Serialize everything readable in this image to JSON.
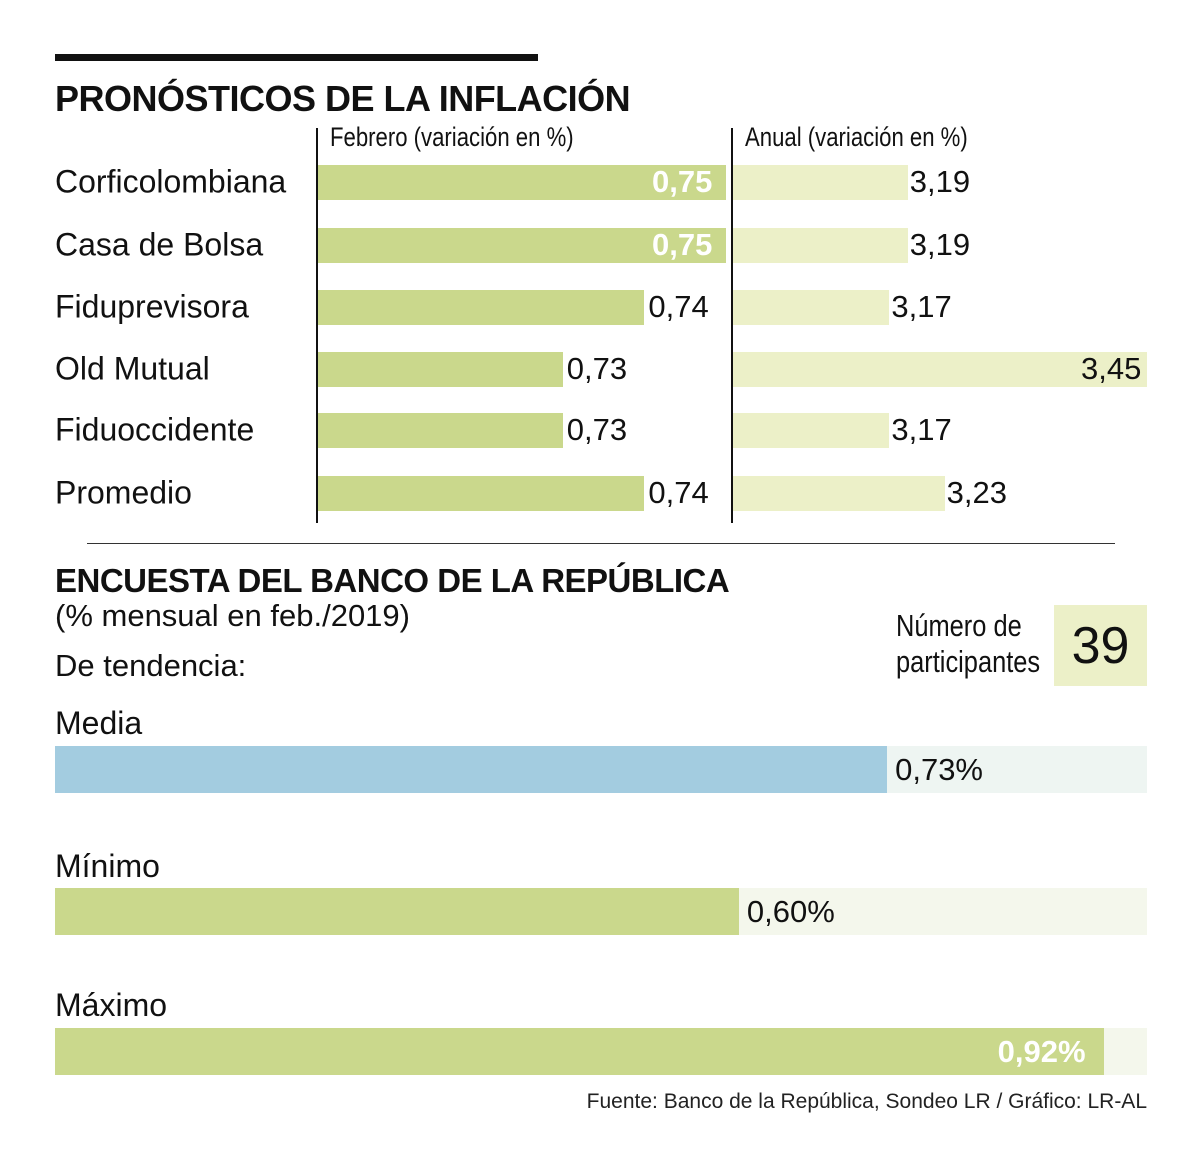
{
  "colors": {
    "feb": "#cad88c",
    "annual": "#ecf0c8",
    "media": "#a3cce0",
    "media_track": "#eef5f2",
    "green_track": "#f4f7ec"
  },
  "title": "PRONÓSTICOS DE LA INFLACIÓN",
  "chart_data": [
    {
      "type": "bar",
      "title": "PRONÓSTICOS DE LA INFLACIÓN",
      "subtitle": "Febrero (variación en %)",
      "orientation": "horizontal",
      "categories": [
        "Corficolombiana",
        "Casa de Bolsa",
        "Fiduprevisora",
        "Old Mutual",
        "Fiduoccidente",
        "Promedio"
      ],
      "values": [
        0.75,
        0.75,
        0.74,
        0.73,
        0.73,
        0.74
      ],
      "labels": [
        "0,75",
        "0,75",
        "0,74",
        "0,73",
        "0,73",
        "0,74"
      ],
      "xlim": [
        0.7,
        0.75
      ]
    },
    {
      "type": "bar",
      "subtitle": "Anual (variación en %)",
      "orientation": "horizontal",
      "categories": [
        "Corficolombiana",
        "Casa de Bolsa",
        "Fiduprevisora",
        "Old Mutual",
        "Fiduoccidente",
        "Promedio"
      ],
      "values": [
        3.19,
        3.19,
        3.17,
        3.45,
        3.17,
        3.23
      ],
      "labels": [
        "3,19",
        "3,19",
        "3,17",
        "3,45",
        "3,17",
        "3,23"
      ],
      "xlim": [
        3.0,
        3.45
      ]
    },
    {
      "type": "bar",
      "title": "ENCUESTA DEL BANCO DE LA REPÚBLICA",
      "subtitle": "(% mensual en feb./2019)",
      "orientation": "horizontal",
      "group_label": "De tendencia:",
      "categories": [
        "Media",
        "Mínimo",
        "Máximo"
      ],
      "values": [
        0.73,
        0.6,
        0.92
      ],
      "labels": [
        "0,73%",
        "0,60%",
        "0,92%"
      ],
      "xlim": [
        0,
        0.958
      ]
    }
  ],
  "participants": {
    "label_line1": "Número de",
    "label_line2": "participantes",
    "value": "39"
  },
  "source": "Fuente: Banco de la República, Sondeo LR / Gráfico: LR-AL"
}
